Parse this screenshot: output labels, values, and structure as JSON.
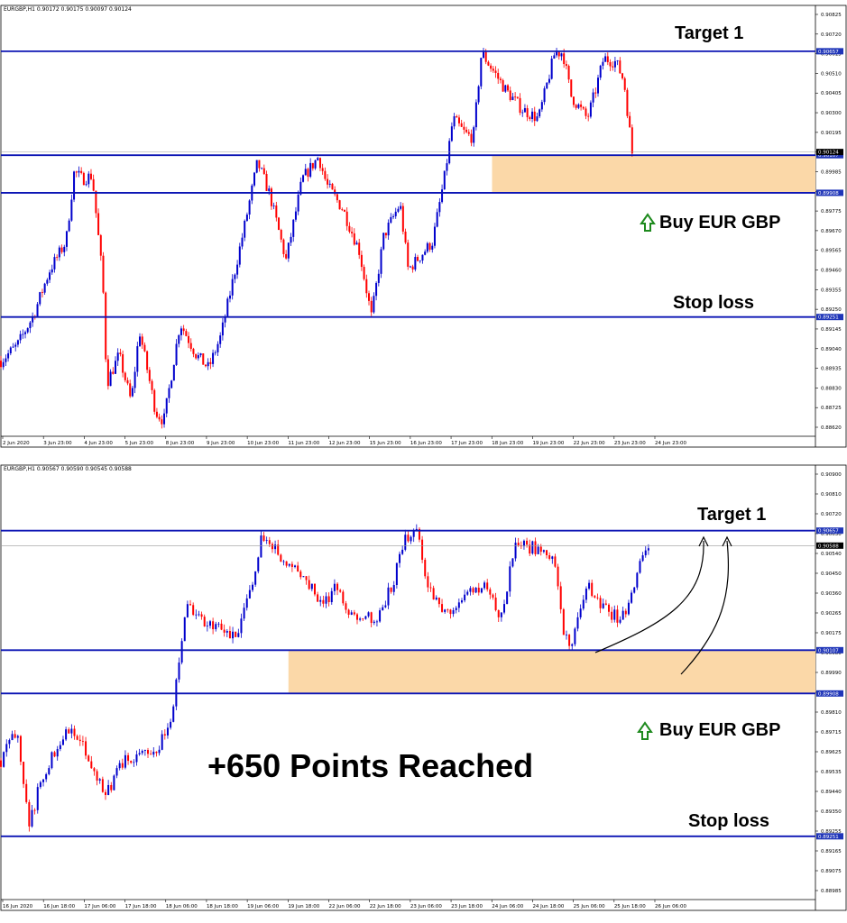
{
  "colors": {
    "bull": "#0000cc",
    "bear": "#ff0000",
    "level": "#0b14b4",
    "zone": "#fbd8a8",
    "green": "#1e8a1e",
    "tag_bg": "#1f35b8",
    "tag_text": "#ffffff"
  },
  "chart_data": [
    {
      "type": "candlestick",
      "symbol": "EURGBP,H1  0.90172 0.90175 0.90097 0.90124",
      "ylim": [
        0.8862,
        0.9089
      ],
      "y_ticks": [
        "0.90825",
        "0.90720",
        "0.90615",
        "0.90510",
        "0.90405",
        "0.90300",
        "0.90195",
        "0.90090",
        "0.89985",
        "0.89880",
        "0.89775",
        "0.89670",
        "0.89565",
        "0.89460",
        "0.89355",
        "0.89250",
        "0.89145",
        "0.89040",
        "0.88935",
        "0.88830",
        "0.88725",
        "0.88620"
      ],
      "x_ticks": [
        "2 Jun 2020",
        "3 Jun 23:00",
        "4 Jun 23:00",
        "5 Jun 23:00",
        "8 Jun 23:00",
        "9 Jun 23:00",
        "10 Jun 23:00",
        "11 Jun 23:00",
        "12 Jun 23:00",
        "15 Jun 23:00",
        "16 Jun 23:00",
        "17 Jun 23:00",
        "18 Jun 23:00",
        "19 Jun 23:00",
        "22 Jun 23:00",
        "23 Jun 23:00",
        "24 Jun 23:00"
      ],
      "levels": [
        {
          "price": 0.90657,
          "label": "0.90657"
        },
        {
          "price": 0.90107,
          "label": "0.90107"
        },
        {
          "price": 0.89908,
          "label": "0.89908"
        },
        {
          "price": 0.89251,
          "label": "0.89251"
        }
      ],
      "current": {
        "price": 0.90124,
        "label": "0.90124"
      },
      "zone": {
        "top": 0.90107,
        "bottom": 0.89908,
        "x_start": 0.603
      },
      "path": [
        [
          0,
          0.8902
        ],
        [
          0.02,
          0.891
        ],
        [
          0.04,
          0.8926
        ],
        [
          0.06,
          0.895
        ],
        [
          0.08,
          0.8965
        ],
        [
          0.09,
          0.9002
        ],
        [
          0.1,
          0.8998
        ],
        [
          0.112,
          0.9
        ],
        [
          0.125,
          0.8945
        ],
        [
          0.13,
          0.889
        ],
        [
          0.145,
          0.8905
        ],
        [
          0.16,
          0.888
        ],
        [
          0.17,
          0.8918
        ],
        [
          0.19,
          0.8875
        ],
        [
          0.2,
          0.887
        ],
        [
          0.22,
          0.8922
        ],
        [
          0.24,
          0.8905
        ],
        [
          0.255,
          0.8898
        ],
        [
          0.27,
          0.8915
        ],
        [
          0.3,
          0.8975
        ],
        [
          0.315,
          0.9007
        ],
        [
          0.33,
          0.899
        ],
        [
          0.35,
          0.8955
        ],
        [
          0.37,
          0.8998
        ],
        [
          0.39,
          0.901
        ],
        [
          0.4,
          0.8995
        ],
        [
          0.42,
          0.8982
        ],
        [
          0.44,
          0.896
        ],
        [
          0.455,
          0.8925
        ],
        [
          0.47,
          0.8968
        ],
        [
          0.49,
          0.8985
        ],
        [
          0.5,
          0.895
        ],
        [
          0.51,
          0.8955
        ],
        [
          0.53,
          0.8965
        ],
        [
          0.545,
          0.9
        ],
        [
          0.555,
          0.903
        ],
        [
          0.57,
          0.9022
        ],
        [
          0.58,
          0.902
        ],
        [
          0.59,
          0.9065
        ],
        [
          0.605,
          0.9055
        ],
        [
          0.62,
          0.9045
        ],
        [
          0.64,
          0.9035
        ],
        [
          0.66,
          0.903
        ],
        [
          0.68,
          0.9065
        ],
        [
          0.69,
          0.9065
        ],
        [
          0.7,
          0.9042
        ],
        [
          0.72,
          0.903
        ],
        [
          0.73,
          0.9045
        ],
        [
          0.74,
          0.9062
        ],
        [
          0.755,
          0.906
        ],
        [
          0.765,
          0.905
        ],
        [
          0.775,
          0.9012
        ]
      ]
    },
    {
      "type": "candlestick",
      "symbol": "EURGBP,H1  0.90567 0.90590 0.90545 0.90588",
      "ylim": [
        0.8896,
        0.9095
      ],
      "y_ticks": [
        "0.90900",
        "0.90810",
        "0.90720",
        "0.90630",
        "0.90540",
        "0.90450",
        "0.90360",
        "0.90265",
        "0.90175",
        "0.90080",
        "0.89990",
        "0.89900",
        "0.89810",
        "0.89715",
        "0.89625",
        "0.89535",
        "0.89440",
        "0.89350",
        "0.89255",
        "0.89165",
        "0.89075",
        "0.88985"
      ],
      "x_ticks": [
        "16 Jun 2020",
        "16 Jun 18:00",
        "17 Jun 06:00",
        "17 Jun 18:00",
        "18 Jun 06:00",
        "18 Jun 18:00",
        "19 Jun 06:00",
        "19 Jun 18:00",
        "22 Jun 06:00",
        "22 Jun 18:00",
        "23 Jun 06:00",
        "23 Jun 18:00",
        "24 Jun 06:00",
        "24 Jun 18:00",
        "25 Jun 06:00",
        "25 Jun 18:00",
        "26 Jun 06:00"
      ],
      "levels": [
        {
          "price": 0.90657,
          "label": "0.90657"
        },
        {
          "price": 0.90107,
          "label": "0.90107"
        },
        {
          "price": 0.89908,
          "label": "0.89908"
        },
        {
          "price": 0.89251,
          "label": "0.89251"
        }
      ],
      "current": {
        "price": 0.90588,
        "label": "0.90588"
      },
      "zone": {
        "top": 0.90107,
        "bottom": 0.89908,
        "x_start": 0.353
      },
      "path": [
        [
          0,
          0.896
        ],
        [
          0.02,
          0.8975
        ],
        [
          0.035,
          0.893
        ],
        [
          0.045,
          0.8945
        ],
        [
          0.06,
          0.896
        ],
        [
          0.08,
          0.8975
        ],
        [
          0.1,
          0.8968
        ],
        [
          0.11,
          0.8955
        ],
        [
          0.13,
          0.8945
        ],
        [
          0.15,
          0.896
        ],
        [
          0.17,
          0.8962
        ],
        [
          0.19,
          0.8965
        ],
        [
          0.21,
          0.8978
        ],
        [
          0.22,
          0.901
        ],
        [
          0.23,
          0.9035
        ],
        [
          0.24,
          0.9025
        ],
        [
          0.27,
          0.902
        ],
        [
          0.29,
          0.9015
        ],
        [
          0.31,
          0.9045
        ],
        [
          0.32,
          0.9063
        ],
        [
          0.34,
          0.9055
        ],
        [
          0.36,
          0.905
        ],
        [
          0.38,
          0.904
        ],
        [
          0.395,
          0.903
        ],
        [
          0.41,
          0.904
        ],
        [
          0.43,
          0.9028
        ],
        [
          0.46,
          0.9025
        ],
        [
          0.48,
          0.904
        ],
        [
          0.495,
          0.906
        ],
        [
          0.51,
          0.907
        ],
        [
          0.52,
          0.9045
        ],
        [
          0.54,
          0.903
        ],
        [
          0.56,
          0.903
        ],
        [
          0.58,
          0.904
        ],
        [
          0.6,
          0.904
        ],
        [
          0.61,
          0.9025
        ],
        [
          0.62,
          0.9035
        ],
        [
          0.63,
          0.906
        ],
        [
          0.65,
          0.9058
        ],
        [
          0.67,
          0.9057
        ],
        [
          0.68,
          0.9052
        ],
        [
          0.69,
          0.902
        ],
        [
          0.7,
          0.901
        ],
        [
          0.71,
          0.903
        ],
        [
          0.72,
          0.904
        ],
        [
          0.74,
          0.903
        ],
        [
          0.76,
          0.9025
        ],
        [
          0.77,
          0.903
        ],
        [
          0.785,
          0.9052
        ],
        [
          0.795,
          0.9058
        ]
      ]
    }
  ],
  "labels": {
    "top": {
      "target": "Target 1",
      "buy": "Buy EUR GBP",
      "stop": "Stop loss"
    },
    "bottom": {
      "target": "Target 1",
      "buy": "Buy EUR GBP",
      "stop": "Stop loss",
      "points": "+650 Points Reached"
    }
  }
}
